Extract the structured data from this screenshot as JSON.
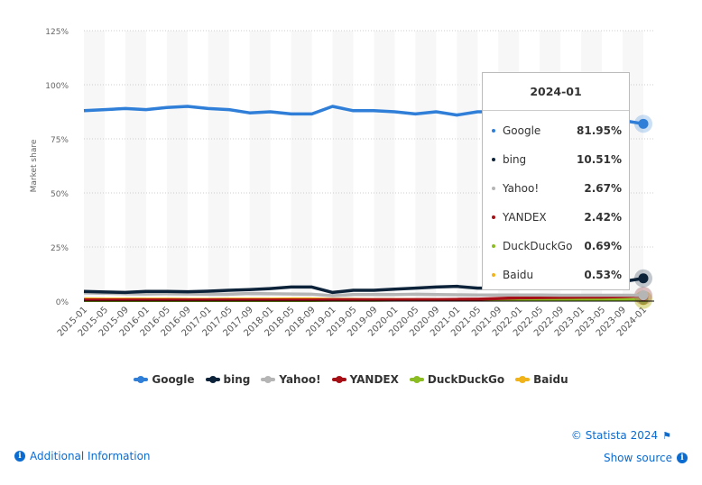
{
  "chart_data": {
    "type": "line",
    "ylabel": "Market share",
    "ylim": [
      0,
      125
    ],
    "yticks": [
      "0%",
      "25%",
      "50%",
      "75%",
      "100%",
      "125%"
    ],
    "ytick_values": [
      0,
      25,
      50,
      75,
      100,
      125
    ],
    "grid": true,
    "legend_placement": "bottom",
    "categories": [
      "2015-01",
      "2015-05",
      "2015-09",
      "2016-01",
      "2016-05",
      "2016-09",
      "2017-01",
      "2017-05",
      "2017-09",
      "2018-01",
      "2018-05",
      "2018-09",
      "2019-01",
      "2019-05",
      "2019-09",
      "2020-01",
      "2020-05",
      "2020-09",
      "2021-01",
      "2021-05",
      "2021-09",
      "2022-01",
      "2022-05",
      "2022-09",
      "2023-01",
      "2023-05",
      "2023-09",
      "2024-01"
    ],
    "series": [
      {
        "name": "Google",
        "color": "#2f7ed8",
        "values": [
          88,
          88.5,
          89,
          88.5,
          89.5,
          90,
          89,
          88.5,
          87,
          87.5,
          86.5,
          86.5,
          90,
          88,
          88,
          87.5,
          86.5,
          87.5,
          86,
          87.5,
          87.5,
          87,
          86.5,
          86,
          85,
          84.5,
          83.5,
          81.95
        ]
      },
      {
        "name": "bing",
        "color": "#0d233a",
        "values": [
          4.5,
          4.2,
          4,
          4.5,
          4.5,
          4.3,
          4.6,
          5,
          5.3,
          5.8,
          6.5,
          6.5,
          4,
          5,
          5,
          5.5,
          6,
          6.5,
          6.8,
          6,
          6,
          6.5,
          7,
          7.5,
          8,
          8.5,
          9,
          10.51
        ]
      },
      {
        "name": "Yahoo!",
        "color": "#b5b5b5",
        "values": [
          3.8,
          3.6,
          3.4,
          3.3,
          3.4,
          3.3,
          3.2,
          3.2,
          3.5,
          3.4,
          3.3,
          3.2,
          2.5,
          3,
          3,
          3,
          3.2,
          3,
          2.9,
          2.8,
          2.8,
          2.8,
          2.8,
          2.7,
          2.7,
          2.7,
          2.7,
          2.67
        ]
      },
      {
        "name": "YANDEX",
        "color": "#a50f15",
        "values": [
          0.5,
          0.5,
          0.5,
          0.5,
          0.5,
          0.5,
          0.5,
          0.5,
          0.5,
          0.5,
          0.5,
          0.5,
          0.6,
          0.6,
          0.6,
          0.6,
          0.7,
          0.7,
          0.8,
          0.9,
          1.2,
          1.5,
          1.6,
          1.7,
          1.8,
          1.9,
          2.1,
          2.42
        ]
      },
      {
        "name": "DuckDuckGo",
        "color": "#8bbc21",
        "values": [
          0.3,
          0.3,
          0.3,
          0.3,
          0.3,
          0.3,
          0.3,
          0.3,
          0.3,
          0.3,
          0.3,
          0.3,
          0.4,
          0.4,
          0.4,
          0.5,
          0.5,
          0.5,
          0.5,
          0.6,
          0.6,
          0.6,
          0.6,
          0.6,
          0.6,
          0.6,
          0.6,
          0.69
        ]
      },
      {
        "name": "Baidu",
        "color": "#f0b31a",
        "values": [
          1,
          0.9,
          0.9,
          0.9,
          0.9,
          0.8,
          0.8,
          0.9,
          0.9,
          0.9,
          1,
          1,
          0.8,
          0.8,
          0.7,
          0.7,
          0.6,
          0.6,
          0.6,
          0.6,
          0.6,
          0.6,
          0.6,
          0.6,
          0.6,
          0.6,
          0.6,
          0.53
        ]
      }
    ]
  },
  "tooltip": {
    "title": "2024-01",
    "rows": [
      {
        "name": "Google",
        "value": "81.95%",
        "color": "#2f7ed8"
      },
      {
        "name": "bing",
        "value": "10.51%",
        "color": "#0d233a"
      },
      {
        "name": "Yahoo!",
        "value": "2.67%",
        "color": "#b5b5b5"
      },
      {
        "name": "YANDEX",
        "value": "2.42%",
        "color": "#a50f15"
      },
      {
        "name": "DuckDuckGo",
        "value": "0.69%",
        "color": "#8bbc21"
      },
      {
        "name": "Baidu",
        "value": "0.53%",
        "color": "#f0b31a"
      }
    ]
  },
  "footer": {
    "copyright": "© Statista 2024",
    "additional_info": "Additional Information",
    "show_source": "Show source"
  }
}
